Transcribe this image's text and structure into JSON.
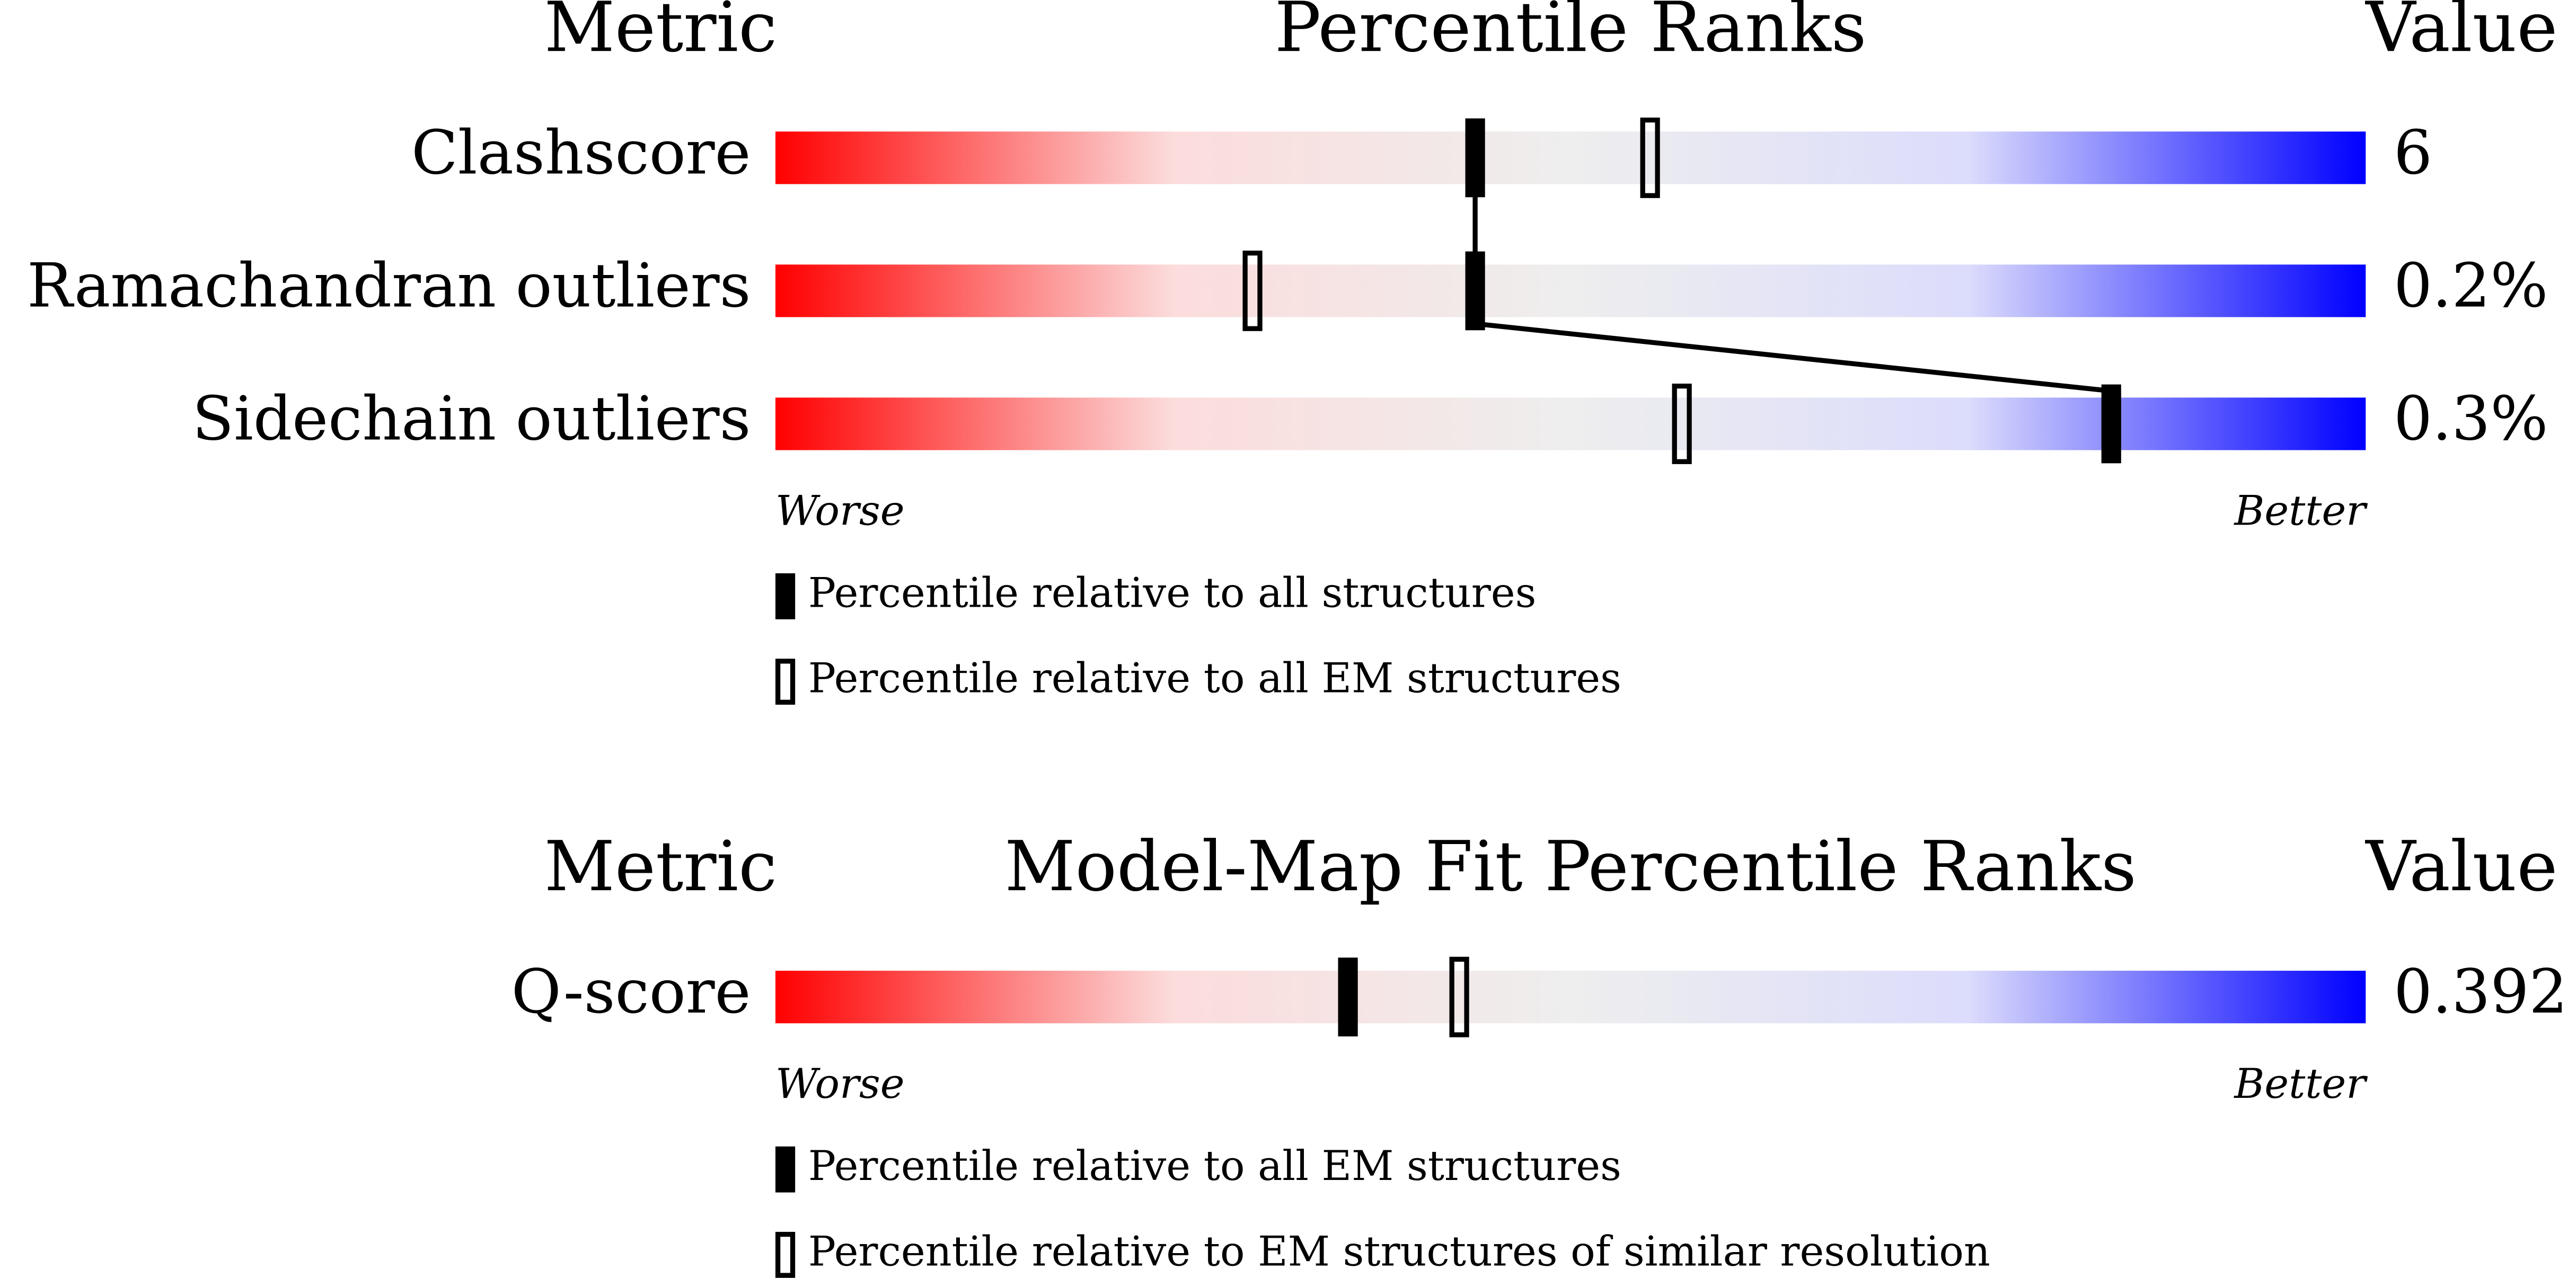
{
  "chart_data": [
    {
      "type": "slider",
      "metric_header": "Metric",
      "title": "Percentile Ranks",
      "value_header": "Value",
      "categories": [
        "Clashscore",
        "Ramachandran outliers",
        "Sidechain outliers"
      ],
      "value_texts": [
        "6",
        "0.2%",
        "0.3%"
      ],
      "xlim": [
        0,
        100
      ],
      "worse": "Worse",
      "better": "Better",
      "gradient": [
        "#ff0000",
        "#fcdcdc",
        "#eeeeee",
        "#dcdcfc",
        "#0000ff"
      ],
      "series": [
        {
          "name": "Percentile relative to all structures",
          "style": "filled",
          "color": "#000000",
          "connected": true,
          "values": [
            44,
            44,
            84
          ]
        },
        {
          "name": "Percentile relative to all EM structures",
          "style": "open",
          "color": "#000000",
          "connected": false,
          "values": [
            55,
            30,
            57
          ]
        }
      ]
    },
    {
      "type": "slider",
      "metric_header": "Metric",
      "title": "Model-Map Fit Percentile Ranks",
      "value_header": "Value",
      "categories": [
        "Q-score"
      ],
      "value_texts": [
        "0.392"
      ],
      "xlim": [
        0,
        100
      ],
      "worse": "Worse",
      "better": "Better",
      "gradient": [
        "#ff0000",
        "#fcdcdc",
        "#eeeeee",
        "#dcdcfc",
        "#0000ff"
      ],
      "series": [
        {
          "name": "Percentile relative to all EM structures",
          "style": "filled",
          "color": "#000000",
          "connected": true,
          "values": [
            36
          ]
        },
        {
          "name": "Percentile relative to EM structures of similar resolution",
          "style": "open",
          "color": "#000000",
          "connected": false,
          "values": [
            43
          ]
        }
      ]
    }
  ]
}
